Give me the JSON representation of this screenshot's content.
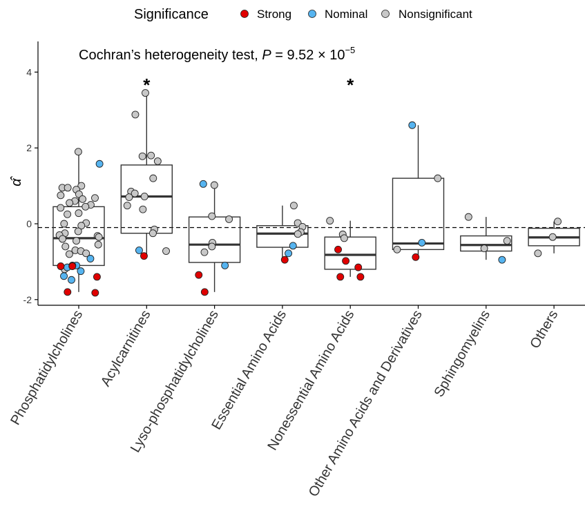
{
  "legend": {
    "title": "Significance",
    "items": [
      {
        "label": "Strong",
        "color": "#e00000"
      },
      {
        "label": "Nominal",
        "color": "#56b4f0"
      },
      {
        "label": "Nonsignificant",
        "color": "#c8c8c8"
      }
    ]
  },
  "annotation": {
    "prefix": "Cochran’s heterogeneity test, ",
    "p_symbol": "P",
    "equals": " = 9.52 × 10",
    "exponent": "−5"
  },
  "chart_data": {
    "type": "box",
    "ylabel": "α̂",
    "ylim": [
      -2.2,
      4.8
    ],
    "yticks": [
      -2,
      0,
      2,
      4
    ],
    "reference_line": -0.1,
    "significance_mark": "*",
    "categories": [
      {
        "name": "Phosphatidylcholines",
        "box": {
          "lower_whisker": -1.8,
          "q1": -1.1,
          "median": -0.38,
          "q3": 0.45,
          "upper_whisker": 1.9
        },
        "starred": false,
        "points": {
          "Strong": [
            -1.1,
            -1.12,
            -1.12,
            -1.4,
            -1.8,
            -1.82
          ],
          "Nominal": [
            1.58,
            -1.1,
            -1.15,
            -1.25,
            -1.48,
            -1.38,
            -0.92
          ],
          "Nonsignificant": [
            1.9,
            1.0,
            0.95,
            0.95,
            0.9,
            0.78,
            0.75,
            0.68,
            0.65,
            0.6,
            0.55,
            0.5,
            0.45,
            0.42,
            0.28,
            0.25,
            0.02,
            0.0,
            -0.05,
            -0.2,
            -0.25,
            -0.3,
            -0.32,
            -0.35,
            -0.4,
            -0.45,
            -0.55,
            -0.6,
            -0.7,
            -0.72,
            -0.78,
            -0.8,
            -1.2
          ]
        }
      },
      {
        "name": "Acylcarnitines",
        "box": {
          "lower_whisker": -0.85,
          "q1": -0.25,
          "median": 0.72,
          "q3": 1.55,
          "upper_whisker": 3.45
        },
        "starred": true,
        "points": {
          "Strong": [
            -0.85
          ],
          "Nominal": [
            -0.7
          ],
          "Nonsignificant": [
            3.45,
            2.88,
            1.8,
            1.78,
            1.65,
            1.2,
            0.85,
            0.8,
            0.72,
            0.7,
            0.48,
            0.38,
            -0.15,
            -0.25,
            -0.72
          ]
        }
      },
      {
        "name": "Lyso-phosphatidylcholines",
        "box": {
          "lower_whisker": -1.8,
          "q1": -1.02,
          "median": -0.55,
          "q3": 0.18,
          "upper_whisker": 1.03
        },
        "starred": false,
        "points": {
          "Strong": [
            -1.35,
            -1.8
          ],
          "Nominal": [
            1.05,
            -1.1
          ],
          "Nonsignificant": [
            1.02,
            0.2,
            0.12,
            -0.5,
            -0.6,
            -0.75
          ]
        }
      },
      {
        "name": "Essential Amino Acids",
        "box": {
          "lower_whisker": -0.95,
          "q1": -0.62,
          "median": -0.26,
          "q3": -0.05,
          "upper_whisker": 0.48
        },
        "starred": false,
        "points": {
          "Strong": [
            -0.95
          ],
          "Nominal": [
            -0.58,
            -0.78
          ],
          "Nonsignificant": [
            0.48,
            0.02,
            -0.08,
            -0.22,
            -0.27
          ]
        }
      },
      {
        "name": "Nonessential Amino Acids",
        "box": {
          "lower_whisker": -1.4,
          "q1": -1.2,
          "median": -0.82,
          "q3": -0.35,
          "upper_whisker": 0.08
        },
        "starred": true,
        "points": {
          "Strong": [
            -0.68,
            -0.98,
            -1.15,
            -1.4,
            -1.4
          ],
          "Nominal": [],
          "Nonsignificant": [
            0.08,
            -0.28,
            -0.38
          ]
        }
      },
      {
        "name": "Other Amino Acids and Derivatives",
        "box": {
          "lower_whisker": -0.88,
          "q1": -0.68,
          "median": -0.52,
          "q3": 1.2,
          "upper_whisker": 2.6
        },
        "starred": false,
        "points": {
          "Strong": [
            -0.88
          ],
          "Nominal": [
            2.6,
            -0.5
          ],
          "Nonsignificant": [
            1.2,
            -0.68
          ]
        }
      },
      {
        "name": "Sphingomyelins",
        "box": {
          "lower_whisker": -0.95,
          "q1": -0.72,
          "median": -0.56,
          "q3": -0.32,
          "upper_whisker": 0.18
        },
        "starred": false,
        "points": {
          "Strong": [],
          "Nominal": [
            -0.95
          ],
          "Nonsignificant": [
            0.18,
            -0.45,
            -0.65
          ]
        }
      },
      {
        "name": "Others",
        "box": {
          "lower_whisker": -0.78,
          "q1": -0.58,
          "median": -0.36,
          "q3": -0.12,
          "upper_whisker": 0.06
        },
        "starred": false,
        "points": {
          "Strong": [],
          "Nominal": [],
          "Nonsignificant": [
            0.06,
            -0.35,
            -0.78
          ]
        }
      }
    ]
  }
}
